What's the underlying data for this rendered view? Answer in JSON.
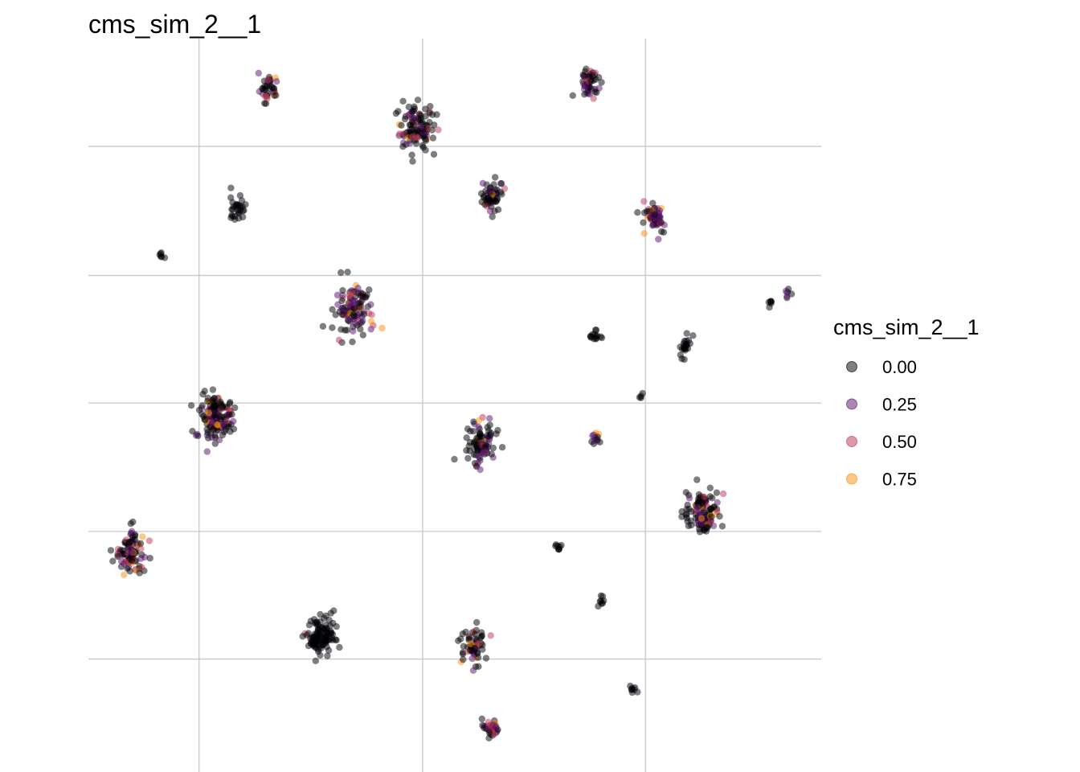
{
  "chart_data": {
    "type": "scatter",
    "title": "cms_sim_2__1",
    "xlabel": "",
    "ylabel": "",
    "xlim": [
      0,
      1
    ],
    "ylim": [
      0,
      1
    ],
    "grid": true,
    "x_gridlines": [
      0.151,
      0.456,
      0.76
    ],
    "y_gridlines": [
      0.154,
      0.328,
      0.503,
      0.677,
      0.853
    ],
    "colorscale": "inferno",
    "legend": {
      "title": "cms_sim_2__1",
      "placement": "right",
      "entries": [
        {
          "label": "0.00",
          "color": "#000004"
        },
        {
          "label": "0.25",
          "color": "#57106E"
        },
        {
          "label": "0.50",
          "color": "#BC3754"
        },
        {
          "label": "0.75",
          "color": "#F98E09"
        }
      ]
    },
    "clusters": [
      {
        "x": 0.246,
        "y": 0.932,
        "spread": 0.012,
        "n": 40,
        "mix": 0.45
      },
      {
        "x": 0.447,
        "y": 0.878,
        "spread": 0.022,
        "n": 110,
        "mix": 0.3
      },
      {
        "x": 0.684,
        "y": 0.94,
        "spread": 0.013,
        "n": 50,
        "mix": 0.55
      },
      {
        "x": 0.203,
        "y": 0.77,
        "spread": 0.01,
        "n": 30,
        "mix": 0.0
      },
      {
        "x": 0.55,
        "y": 0.784,
        "spread": 0.015,
        "n": 55,
        "mix": 0.2
      },
      {
        "x": 0.773,
        "y": 0.754,
        "spread": 0.013,
        "n": 55,
        "mix": 0.6
      },
      {
        "x": 0.102,
        "y": 0.703,
        "spread": 0.004,
        "n": 6,
        "mix": 0.0
      },
      {
        "x": 0.362,
        "y": 0.628,
        "spread": 0.026,
        "n": 110,
        "mix": 0.5
      },
      {
        "x": 0.695,
        "y": 0.594,
        "spread": 0.007,
        "n": 14,
        "mix": 0.0
      },
      {
        "x": 0.815,
        "y": 0.58,
        "spread": 0.011,
        "n": 22,
        "mix": 0.05
      },
      {
        "x": 0.93,
        "y": 0.64,
        "spread": 0.004,
        "n": 6,
        "mix": 0.0
      },
      {
        "x": 0.953,
        "y": 0.653,
        "spread": 0.004,
        "n": 6,
        "mix": 0.3
      },
      {
        "x": 0.753,
        "y": 0.512,
        "spread": 0.003,
        "n": 4,
        "mix": 0.0
      },
      {
        "x": 0.175,
        "y": 0.482,
        "spread": 0.02,
        "n": 140,
        "mix": 0.35
      },
      {
        "x": 0.536,
        "y": 0.449,
        "spread": 0.02,
        "n": 90,
        "mix": 0.25
      },
      {
        "x": 0.692,
        "y": 0.455,
        "spread": 0.006,
        "n": 12,
        "mix": 0.55
      },
      {
        "x": 0.836,
        "y": 0.357,
        "spread": 0.022,
        "n": 120,
        "mix": 0.3
      },
      {
        "x": 0.057,
        "y": 0.3,
        "spread": 0.02,
        "n": 100,
        "mix": 0.4
      },
      {
        "x": 0.642,
        "y": 0.306,
        "spread": 0.004,
        "n": 8,
        "mix": 0.0
      },
      {
        "x": 0.317,
        "y": 0.185,
        "spread": 0.016,
        "n": 110,
        "mix": 0.05
      },
      {
        "x": 0.7,
        "y": 0.236,
        "spread": 0.005,
        "n": 8,
        "mix": 0.0
      },
      {
        "x": 0.527,
        "y": 0.174,
        "spread": 0.016,
        "n": 60,
        "mix": 0.3
      },
      {
        "x": 0.742,
        "y": 0.112,
        "spread": 0.004,
        "n": 8,
        "mix": 0.05
      },
      {
        "x": 0.549,
        "y": 0.06,
        "spread": 0.01,
        "n": 40,
        "mix": 0.6
      }
    ]
  }
}
